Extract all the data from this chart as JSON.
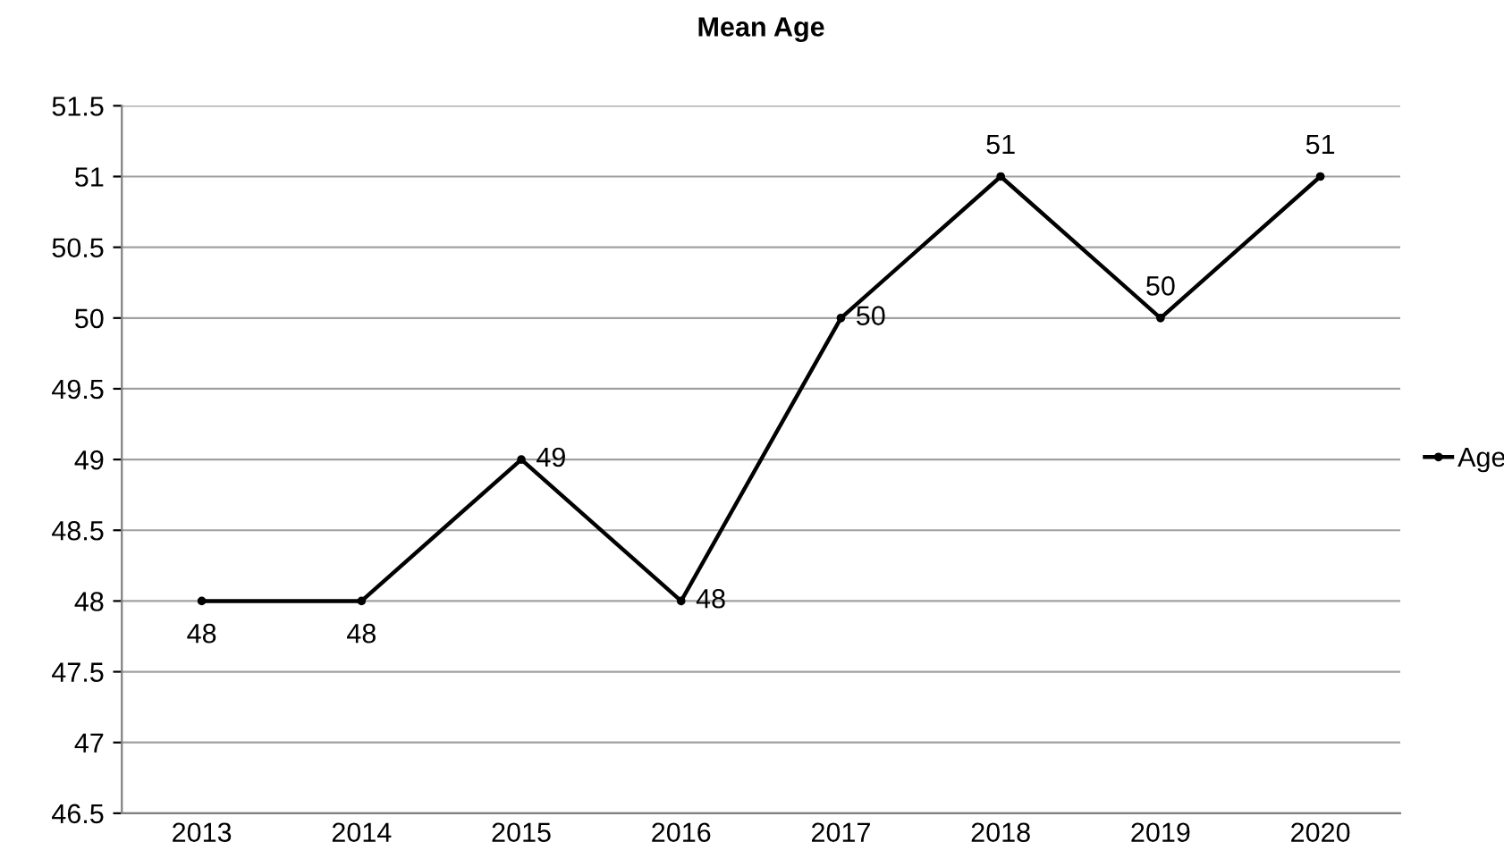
{
  "chart_data": {
    "type": "line",
    "title": "Mean Age",
    "categories": [
      "2013",
      "2014",
      "2015",
      "2016",
      "2017",
      "2018",
      "2019",
      "2020"
    ],
    "series": [
      {
        "name": "Age",
        "color": "#000000",
        "values": [
          48,
          48,
          49,
          48,
          50,
          51,
          50,
          51
        ]
      }
    ],
    "ylim": [
      46.5,
      51.5
    ],
    "yticks": [
      46.5,
      47,
      47.5,
      48,
      48.5,
      49,
      49.5,
      50,
      50.5,
      51,
      51.5
    ],
    "grid": "y",
    "legend": "right",
    "marker": "circle",
    "line_style": "solid",
    "data_labels": true
  }
}
